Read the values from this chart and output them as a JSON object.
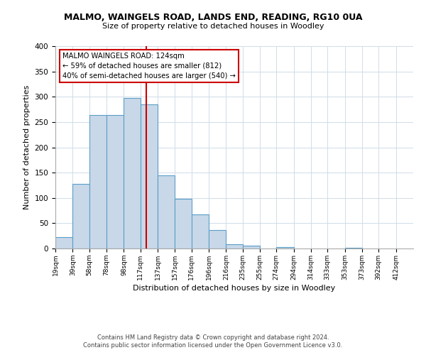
{
  "title": "MALMO, WAINGELS ROAD, LANDS END, READING, RG10 0UA",
  "subtitle": "Size of property relative to detached houses in Woodley",
  "xlabel": "Distribution of detached houses by size in Woodley",
  "ylabel": "Number of detached properties",
  "bar_left_edges": [
    19,
    39,
    58,
    78,
    98,
    117,
    137,
    157,
    176,
    196,
    216,
    235,
    255,
    274,
    294,
    314,
    333,
    353,
    373,
    392
  ],
  "bar_heights": [
    22,
    128,
    264,
    264,
    298,
    285,
    145,
    98,
    68,
    37,
    9,
    5,
    0,
    3,
    0,
    0,
    0,
    2,
    0,
    0
  ],
  "bar_widths": [
    20,
    19,
    20,
    20,
    19,
    20,
    20,
    19,
    20,
    20,
    19,
    20,
    19,
    20,
    20,
    19,
    20,
    20,
    19,
    20
  ],
  "tick_labels": [
    "19sqm",
    "39sqm",
    "58sqm",
    "78sqm",
    "98sqm",
    "117sqm",
    "137sqm",
    "157sqm",
    "176sqm",
    "196sqm",
    "216sqm",
    "235sqm",
    "255sqm",
    "274sqm",
    "294sqm",
    "314sqm",
    "333sqm",
    "353sqm",
    "373sqm",
    "392sqm",
    "412sqm"
  ],
  "tick_positions": [
    19,
    39,
    58,
    78,
    98,
    117,
    137,
    157,
    176,
    196,
    216,
    235,
    255,
    274,
    294,
    314,
    333,
    353,
    373,
    392,
    412
  ],
  "bar_color": "#c8d8e8",
  "bar_edge_color": "#5a9ec8",
  "marker_x": 124,
  "marker_color": "#cc0000",
  "ylim": [
    0,
    400
  ],
  "xlim": [
    19,
    432
  ],
  "annotation_title": "MALMO WAINGELS ROAD: 124sqm",
  "annotation_line1": "← 59% of detached houses are smaller (812)",
  "annotation_line2": "40% of semi-detached houses are larger (540) →",
  "annotation_box_color": "#ffffff",
  "annotation_box_edge": "#cc0000",
  "footer1": "Contains HM Land Registry data © Crown copyright and database right 2024.",
  "footer2": "Contains public sector information licensed under the Open Government Licence v3.0.",
  "yticks": [
    0,
    50,
    100,
    150,
    200,
    250,
    300,
    350,
    400
  ]
}
